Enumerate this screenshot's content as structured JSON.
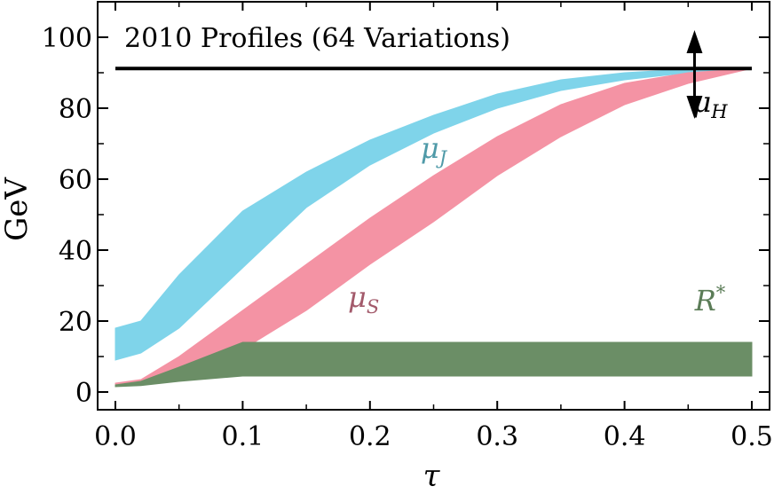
{
  "chart_data": {
    "type": "line",
    "title": "2010 Profiles (64 Variations)",
    "xlabel": "τ",
    "ylabel": "GeV",
    "xlim": [
      0.0,
      0.5
    ],
    "ylim": [
      -5,
      110
    ],
    "x_ticks": [
      "0.0",
      "0.1",
      "0.2",
      "0.3",
      "0.4",
      "0.5"
    ],
    "y_ticks": [
      "0",
      "20",
      "40",
      "60",
      "80",
      "100"
    ],
    "x": [
      0.0,
      0.02,
      0.05,
      0.1,
      0.15,
      0.2,
      0.25,
      0.3,
      0.35,
      0.4,
      0.45,
      0.5
    ],
    "grid": false,
    "legend": "none",
    "series": [
      {
        "name": "μ_H",
        "color": "#000000",
        "band_lower": [
          91.2,
          91.2,
          91.2,
          91.2,
          91.2,
          91.2,
          91.2,
          91.2,
          91.2,
          91.2,
          91.2,
          91.2
        ],
        "band_upper": [
          91.2,
          91.2,
          91.2,
          91.2,
          91.2,
          91.2,
          91.2,
          91.2,
          91.2,
          91.2,
          91.2,
          91.2
        ]
      },
      {
        "name": "μ_J",
        "color": "#7fd4ea",
        "band_lower": [
          9,
          11,
          18,
          35,
          52,
          64,
          73,
          80,
          85,
          88,
          90,
          91.2
        ],
        "band_upper": [
          18,
          20,
          33,
          51,
          62,
          71,
          78,
          84,
          88,
          90,
          91,
          91.2
        ]
      },
      {
        "name": "μ_S",
        "color": "#f493a4",
        "band_lower": [
          2,
          2.5,
          4.5,
          12,
          23,
          36,
          48,
          61,
          72,
          81,
          87,
          91.2
        ],
        "band_upper": [
          2.5,
          3.5,
          10,
          23,
          36,
          49,
          61,
          72,
          81,
          87,
          90,
          91.2
        ]
      },
      {
        "name": "R*",
        "color": "#6b8e66",
        "band_lower": [
          1.5,
          1.8,
          3,
          4.5,
          4.5,
          4.5,
          4.5,
          4.5,
          4.5,
          4.5,
          4.5,
          4.5
        ],
        "band_upper": [
          2,
          3,
          7,
          14,
          14,
          14,
          14,
          14,
          14,
          14,
          14,
          14
        ]
      }
    ],
    "annotations": [
      {
        "text": "μ",
        "sub": "J",
        "series": "μ_J",
        "x": 0.25,
        "y": 66,
        "color": "#4f9aa8"
      },
      {
        "text": "μ",
        "sub": "S",
        "series": "μ_S",
        "x": 0.195,
        "y": 24,
        "color": "#a35a6b"
      },
      {
        "text": "R",
        "sup": "*",
        "series": "R*",
        "x": 0.55,
        "y": 23,
        "color": "#5b7c57"
      },
      {
        "text": "μ",
        "sub": "H",
        "series": "μ_H",
        "x": 0.6,
        "y": 79,
        "color": "#000000"
      }
    ],
    "arrow": {
      "x": 0.455,
      "y_from": 77,
      "y_to": 102,
      "color": "#000000"
    }
  }
}
